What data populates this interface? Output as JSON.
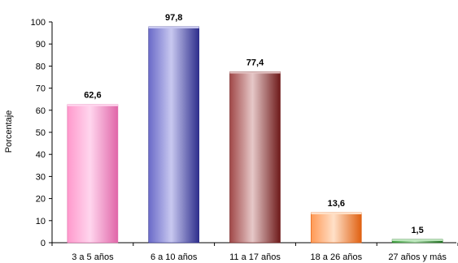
{
  "chart_data": {
    "type": "bar",
    "title": "",
    "xlabel": "",
    "ylabel": "Porcentaje",
    "ylim": [
      0,
      100
    ],
    "ytick_step": 10,
    "grid": false,
    "legend": "none",
    "categories": [
      "3 a 5 años",
      "6 a 10 años",
      "11 a 17 años",
      "18 a 26 años",
      "27 años y más"
    ],
    "values": [
      62.6,
      97.8,
      77.4,
      13.6,
      1.5
    ],
    "value_labels": [
      "62,6",
      "97,8",
      "77,4",
      "13,6",
      "1,5"
    ],
    "colors": [
      {
        "light": "#FFD6EE",
        "mid": "#FF99CC",
        "dark": "#E066A8"
      },
      {
        "light": "#C8C8F0",
        "mid": "#6A6AC8",
        "dark": "#2E2E8C"
      },
      {
        "light": "#E6C8C8",
        "mid": "#A04848",
        "dark": "#6E1A1A"
      },
      {
        "light": "#FFE0C8",
        "mid": "#FF9955",
        "dark": "#E06010"
      },
      {
        "light": "#BFE8BF",
        "mid": "#3CA03C",
        "dark": "#1E6E1E"
      }
    ]
  }
}
